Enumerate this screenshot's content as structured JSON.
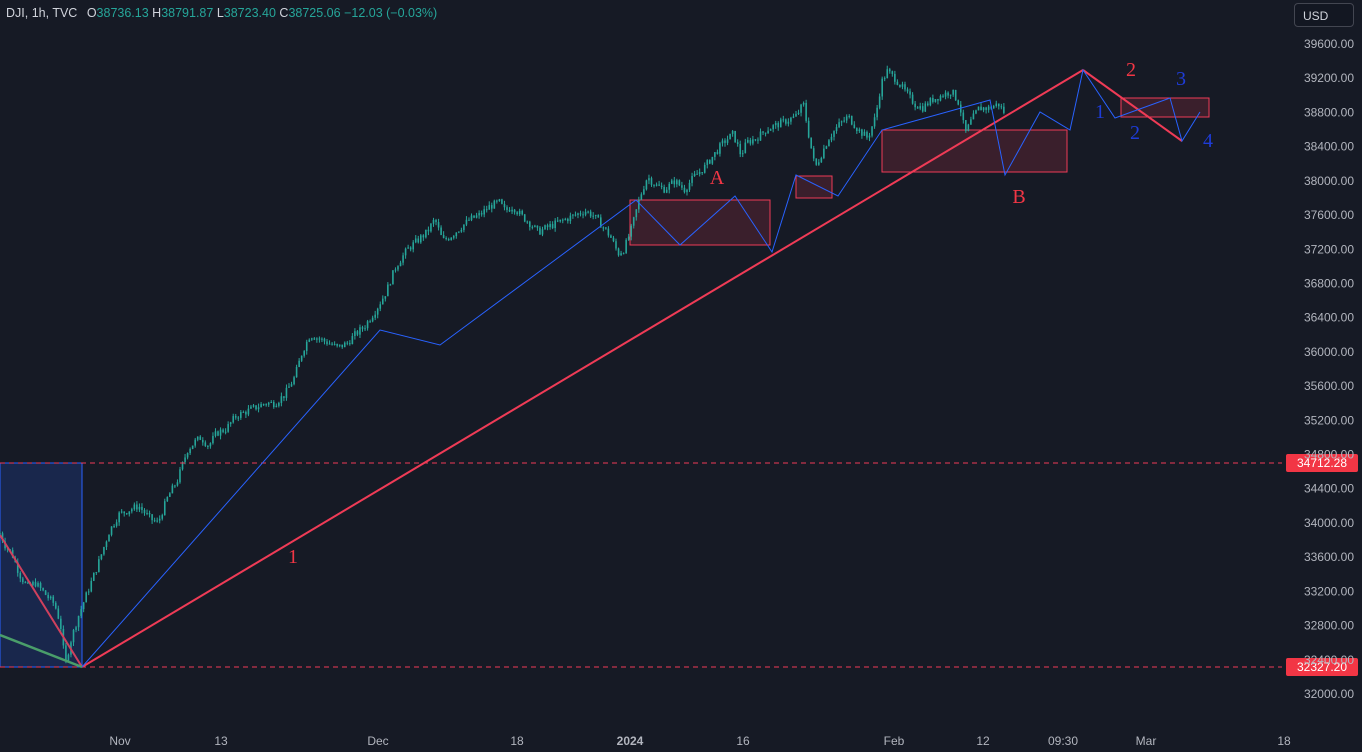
{
  "header": {
    "symbol": "DJI, 1h, TVC",
    "o_label": "O",
    "o_value": "38736.13",
    "h_label": "H",
    "h_value": "38791.87",
    "l_label": "L",
    "l_value": "38723.40",
    "c_label": "C",
    "c_value": "38725.06",
    "change": "−12.03 (−0.03%)"
  },
  "currency_button": "USD",
  "colors": {
    "background": "#161a25",
    "candle": "#26a69a",
    "trendline": "#ef3b56",
    "wave_line": "#2962ff",
    "box_fill": "rgba(224,56,79,0.18)",
    "red_label": "#f23645",
    "blue_label": "#1e3cd8",
    "price_tag": "#f23645"
  },
  "chart_data": {
    "type": "candlestick",
    "title": "DJI, 1h, TVC",
    "y_axis": {
      "ticks": [
        "39600.00",
        "39200.00",
        "38800.00",
        "38400.00",
        "38000.00",
        "37600.00",
        "37200.00",
        "36800.00",
        "36400.00",
        "36000.00",
        "35600.00",
        "35200.00",
        "34800.00",
        "34400.00",
        "34000.00",
        "33600.00",
        "33200.00",
        "32800.00",
        "32400.00",
        "32000.00"
      ],
      "range": [
        31900,
        39800
      ]
    },
    "x_axis": {
      "ticks": [
        "Nov",
        "13",
        "Dec",
        "18",
        "2024",
        "16",
        "Feb",
        "12",
        "09:30",
        "Mar",
        "18"
      ]
    },
    "price_path": [
      [
        0.0,
        33880
      ],
      [
        0.3,
        33720
      ],
      [
        0.6,
        33650
      ],
      [
        1.0,
        33400
      ],
      [
        1.4,
        33250
      ],
      [
        1.8,
        33300
      ],
      [
        2.2,
        33200
      ],
      [
        2.5,
        33120
      ],
      [
        2.8,
        33050
      ],
      [
        3.1,
        32820
      ],
      [
        3.35,
        32330
      ],
      [
        3.6,
        32600
      ],
      [
        4.0,
        32900
      ],
      [
        4.5,
        33200
      ],
      [
        5.0,
        33500
      ],
      [
        5.6,
        33900
      ],
      [
        6.1,
        34100
      ],
      [
        6.6,
        34150
      ],
      [
        7.1,
        34200
      ],
      [
        7.7,
        34050
      ],
      [
        8.1,
        34000
      ],
      [
        8.6,
        34300
      ],
      [
        9.1,
        34500
      ],
      [
        9.6,
        34850
      ],
      [
        10.0,
        34950
      ],
      [
        10.3,
        35000
      ],
      [
        10.7,
        34900
      ],
      [
        11.1,
        35050
      ],
      [
        11.6,
        35100
      ],
      [
        12.1,
        35250
      ],
      [
        12.6,
        35300
      ],
      [
        13.1,
        35350
      ],
      [
        13.6,
        35400
      ],
      [
        14.1,
        35400
      ],
      [
        14.6,
        35500
      ],
      [
        15.1,
        35700
      ],
      [
        15.5,
        36000
      ],
      [
        15.9,
        36200
      ],
      [
        16.4,
        36150
      ],
      [
        16.9,
        36100
      ],
      [
        17.3,
        36050
      ],
      [
        17.8,
        36100
      ],
      [
        18.2,
        36200
      ],
      [
        18.7,
        36300
      ],
      [
        19.3,
        36500
      ],
      [
        19.8,
        36700
      ],
      [
        20.3,
        37000
      ],
      [
        20.9,
        37200
      ],
      [
        21.4,
        37300
      ],
      [
        21.9,
        37400
      ],
      [
        22.3,
        37550
      ],
      [
        22.7,
        37300
      ],
      [
        23.1,
        37350
      ],
      [
        23.6,
        37450
      ],
      [
        24.1,
        37550
      ],
      [
        24.6,
        37600
      ],
      [
        25.1,
        37700
      ],
      [
        25.6,
        37750
      ],
      [
        25.9,
        37650
      ],
      [
        26.3,
        37700
      ],
      [
        26.7,
        37600
      ],
      [
        27.2,
        37500
      ],
      [
        27.6,
        37400
      ],
      [
        28.0,
        37450
      ],
      [
        28.5,
        37500
      ],
      [
        29.0,
        37550
      ],
      [
        29.5,
        37600
      ],
      [
        30.0,
        37650
      ],
      [
        30.4,
        37600
      ],
      [
        30.8,
        37500
      ],
      [
        31.3,
        37350
      ],
      [
        31.7,
        37150
      ],
      [
        32.0,
        37200
      ],
      [
        32.4,
        37450
      ],
      [
        32.8,
        37800
      ],
      [
        33.2,
        38050
      ],
      [
        33.6,
        37950
      ],
      [
        34.1,
        37900
      ],
      [
        34.6,
        38000
      ],
      [
        35.1,
        37900
      ],
      [
        35.6,
        38050
      ],
      [
        36.1,
        38150
      ],
      [
        36.6,
        38300
      ],
      [
        37.1,
        38450
      ],
      [
        37.6,
        38550
      ],
      [
        38.0,
        38300
      ],
      [
        38.3,
        38450
      ],
      [
        38.8,
        38500
      ],
      [
        39.3,
        38600
      ],
      [
        39.8,
        38650
      ],
      [
        40.3,
        38700
      ],
      [
        40.8,
        38750
      ],
      [
        41.2,
        38900
      ],
      [
        41.5,
        38500
      ],
      [
        41.8,
        38150
      ],
      [
        42.1,
        38300
      ],
      [
        42.5,
        38500
      ],
      [
        43.0,
        38650
      ],
      [
        43.5,
        38750
      ],
      [
        44.0,
        38600
      ],
      [
        44.5,
        38500
      ],
      [
        44.9,
        38750
      ],
      [
        45.2,
        39150
      ],
      [
        45.5,
        39280
      ],
      [
        45.9,
        39200
      ],
      [
        46.4,
        39050
      ],
      [
        46.9,
        38900
      ],
      [
        47.3,
        38850
      ],
      [
        47.8,
        38950
      ],
      [
        48.3,
        39000
      ],
      [
        48.8,
        39050
      ],
      [
        49.2,
        38900
      ],
      [
        49.5,
        38550
      ],
      [
        49.8,
        38700
      ],
      [
        50.2,
        38850
      ],
      [
        50.7,
        38850
      ],
      [
        51.2,
        38900
      ],
      [
        51.5,
        38800
      ]
    ],
    "annotations": {
      "wave_labels_red": [
        "1",
        "A",
        "B",
        "2"
      ],
      "wave_labels_blue": [
        "1",
        "2",
        "3",
        "4"
      ],
      "price_levels": [
        "34712.28",
        "32327.20"
      ]
    }
  }
}
